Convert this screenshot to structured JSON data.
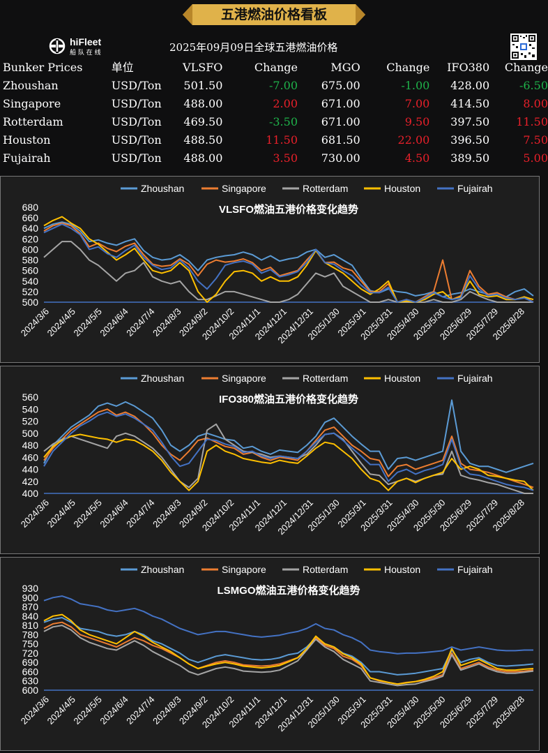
{
  "header": {
    "banner": "五港燃油价格看板",
    "logo_text": "hiFleet",
    "logo_sub": "船 队 在 线",
    "subtitle": "2025年09月09日全球五港燃油价格"
  },
  "price_table": {
    "headers": [
      "Bunker Prices",
      "单位",
      "VLSFO",
      "Change",
      "MGO",
      "Change",
      "IFO380",
      "Change"
    ],
    "rows": [
      {
        "port": "Zhoushan",
        "unit": "USD/Ton",
        "vlsfo": "501.50",
        "vlsfo_chg": "-7.00",
        "mgo": "675.00",
        "mgo_chg": "-1.00",
        "ifo": "428.00",
        "ifo_chg": "-6.50"
      },
      {
        "port": "Singapore",
        "unit": "USD/Ton",
        "vlsfo": "488.00",
        "vlsfo_chg": "2.00",
        "mgo": "671.00",
        "mgo_chg": "7.00",
        "ifo": "414.50",
        "ifo_chg": "8.00"
      },
      {
        "port": "Rotterdam",
        "unit": "USD/Ton",
        "vlsfo": "469.50",
        "vlsfo_chg": "-3.50",
        "mgo": "671.00",
        "mgo_chg": "9.50",
        "ifo": "397.50",
        "ifo_chg": "11.50"
      },
      {
        "port": "Houston",
        "unit": "USD/Ton",
        "vlsfo": "488.50",
        "vlsfo_chg": "11.50",
        "mgo": "681.50",
        "mgo_chg": "22.00",
        "ifo": "396.50",
        "ifo_chg": "7.50"
      },
      {
        "port": "Fujairah",
        "unit": "USD/Ton",
        "vlsfo": "488.00",
        "vlsfo_chg": "3.50",
        "mgo": "730.00",
        "mgo_chg": "4.50",
        "ifo": "389.50",
        "ifo_chg": "5.00"
      }
    ]
  },
  "colors": {
    "zhoushan": "#5b9bd5",
    "singapore": "#ed7d31",
    "rotterdam": "#a5a5a5",
    "houston": "#ffc000",
    "fujairah": "#4472c4",
    "up": "#e8202a",
    "down": "#1fb24a",
    "banner": "#e0b24a"
  },
  "chart_data": [
    {
      "type": "line",
      "title": "VLSFO燃油五港价格变化趋势",
      "legend_position": "top",
      "ylim": [
        500,
        680
      ],
      "yticks": [
        500,
        520,
        540,
        560,
        580,
        600,
        620,
        640,
        660,
        680
      ],
      "x_tick_labels": [
        "2024/3/6",
        "2024/4/5",
        "2024/5/5",
        "2024/6/4",
        "2024/7/4",
        "2024/8/3",
        "2024/9/2",
        "2024/10/2",
        "2024/11/1",
        "2024/12/1",
        "2024/12/31",
        "2025/1/30",
        "2025/3/1",
        "2025/3/31",
        "2025/4/30",
        "2025/5/30",
        "2025/6/29",
        "2025/7/29",
        "2025/8/28"
      ],
      "series": [
        {
          "name": "Zhoushan",
          "values": [
            640,
            648,
            652,
            648,
            635,
            615,
            618,
            612,
            608,
            615,
            620,
            598,
            585,
            580,
            582,
            590,
            578,
            560,
            580,
            585,
            588,
            590,
            595,
            590,
            580,
            588,
            578,
            582,
            585,
            595,
            600,
            585,
            590,
            580,
            570,
            545,
            522,
            518,
            525,
            520,
            518,
            512,
            515,
            520,
            510,
            515,
            518,
            525,
            520,
            515,
            515,
            510,
            520,
            525,
            512
          ]
        },
        {
          "name": "Singapore",
          "values": [
            635,
            645,
            650,
            645,
            630,
            605,
            612,
            602,
            596,
            606,
            612,
            590,
            572,
            568,
            570,
            582,
            572,
            550,
            572,
            580,
            576,
            578,
            582,
            575,
            560,
            566,
            550,
            555,
            560,
            580,
            598,
            575,
            576,
            565,
            560,
            540,
            520,
            520,
            535,
            500,
            505,
            500,
            510,
            520,
            580,
            505,
            512,
            560,
            530,
            515,
            518,
            510,
            505,
            510,
            500
          ]
        },
        {
          "name": "Rotterdam",
          "values": [
            585,
            600,
            615,
            615,
            600,
            580,
            570,
            555,
            540,
            555,
            560,
            575,
            548,
            540,
            535,
            540,
            520,
            505,
            505,
            512,
            520,
            520,
            515,
            510,
            505,
            500,
            500,
            505,
            515,
            535,
            555,
            548,
            555,
            530,
            520,
            510,
            500,
            500,
            505,
            500,
            500,
            500,
            500,
            505,
            500,
            500,
            505,
            520,
            512,
            505,
            500,
            500,
            500,
            500,
            500
          ]
        },
        {
          "name": "Houston",
          "values": [
            645,
            655,
            662,
            650,
            640,
            620,
            610,
            595,
            580,
            590,
            602,
            580,
            560,
            555,
            560,
            575,
            560,
            520,
            500,
            515,
            540,
            558,
            560,
            555,
            540,
            548,
            540,
            540,
            548,
            570,
            598,
            575,
            565,
            555,
            540,
            525,
            515,
            525,
            540,
            500,
            502,
            500,
            505,
            515,
            520,
            505,
            510,
            540,
            515,
            510,
            512,
            505,
            505,
            510,
            505
          ]
        },
        {
          "name": "Fujairah",
          "values": [
            632,
            640,
            648,
            640,
            628,
            600,
            605,
            592,
            585,
            598,
            608,
            585,
            570,
            562,
            565,
            580,
            565,
            540,
            525,
            545,
            570,
            575,
            578,
            572,
            555,
            562,
            548,
            552,
            558,
            575,
            600,
            575,
            572,
            560,
            550,
            532,
            518,
            518,
            528,
            500,
            505,
            500,
            508,
            518,
            510,
            505,
            508,
            550,
            525,
            512,
            515,
            508,
            505,
            508,
            500
          ]
        }
      ]
    },
    {
      "type": "line",
      "title": "IFO380燃油五港价格变化趋势",
      "legend_position": "top",
      "ylim": [
        400,
        560
      ],
      "yticks": [
        400,
        420,
        440,
        460,
        480,
        500,
        520,
        540,
        560
      ],
      "x_tick_labels": [
        "2024/3/6",
        "2024/4/5",
        "2024/5/5",
        "2024/6/4",
        "2024/7/4",
        "2024/8/3",
        "2024/9/2",
        "2024/10/2",
        "2024/11/1",
        "2024/12/1",
        "2024/12/31",
        "2025/1/30",
        "2025/3/1",
        "2025/3/31",
        "2025/4/30",
        "2025/5/30",
        "2025/6/29",
        "2025/7/29",
        "2025/8/28"
      ],
      "series": [
        {
          "name": "Zhoushan",
          "values": [
            450,
            480,
            495,
            510,
            520,
            530,
            545,
            550,
            545,
            552,
            545,
            535,
            525,
            505,
            480,
            470,
            480,
            495,
            500,
            495,
            490,
            488,
            475,
            478,
            470,
            465,
            472,
            470,
            468,
            480,
            495,
            518,
            525,
            510,
            495,
            482,
            470,
            470,
            440,
            458,
            460,
            455,
            460,
            465,
            470,
            555,
            470,
            450,
            445,
            445,
            440,
            435,
            440,
            445,
            450
          ]
        },
        {
          "name": "Singapore",
          "values": [
            455,
            475,
            490,
            505,
            515,
            525,
            535,
            540,
            530,
            535,
            528,
            515,
            500,
            480,
            465,
            455,
            470,
            488,
            492,
            485,
            478,
            475,
            465,
            468,
            460,
            455,
            460,
            458,
            455,
            470,
            488,
            505,
            510,
            495,
            480,
            470,
            458,
            455,
            428,
            445,
            448,
            440,
            445,
            450,
            455,
            495,
            450,
            440,
            438,
            435,
            430,
            425,
            420,
            415,
            410
          ]
        },
        {
          "name": "Rotterdam",
          "values": [
            470,
            482,
            490,
            495,
            490,
            485,
            480,
            475,
            495,
            500,
            495,
            485,
            475,
            460,
            440,
            420,
            410,
            425,
            505,
            515,
            490,
            480,
            470,
            468,
            465,
            460,
            462,
            460,
            458,
            465,
            480,
            498,
            500,
            490,
            470,
            450,
            432,
            430,
            415,
            420,
            425,
            420,
            425,
            430,
            432,
            470,
            430,
            425,
            422,
            418,
            415,
            410,
            405,
            400,
            400
          ]
        },
        {
          "name": "Houston",
          "values": [
            460,
            478,
            488,
            495,
            498,
            495,
            492,
            490,
            485,
            490,
            488,
            480,
            470,
            455,
            435,
            420,
            405,
            420,
            470,
            480,
            470,
            465,
            458,
            455,
            452,
            450,
            455,
            452,
            450,
            462,
            475,
            485,
            482,
            470,
            458,
            440,
            425,
            420,
            405,
            420,
            425,
            418,
            425,
            430,
            435,
            458,
            440,
            445,
            440,
            430,
            428,
            425,
            422,
            420,
            405
          ]
        },
        {
          "name": "Fujairah",
          "values": [
            445,
            470,
            485,
            500,
            512,
            520,
            530,
            535,
            528,
            532,
            525,
            515,
            505,
            485,
            462,
            445,
            450,
            470,
            490,
            488,
            482,
            478,
            468,
            470,
            462,
            458,
            462,
            460,
            458,
            470,
            485,
            498,
            500,
            488,
            475,
            462,
            448,
            448,
            420,
            435,
            440,
            432,
            438,
            442,
            448,
            490,
            445,
            432,
            430,
            425,
            420,
            415,
            412,
            410,
            405
          ]
        }
      ]
    },
    {
      "type": "line",
      "title": "LSMGO燃油五港价格变化趋势",
      "legend_position": "top",
      "ylim": [
        600,
        930
      ],
      "yticks": [
        600,
        630,
        660,
        690,
        720,
        750,
        780,
        810,
        840,
        870,
        900,
        930
      ],
      "x_tick_labels": [
        "2024/3/6",
        "2024/4/5",
        "2024/5/5",
        "2024/6/4",
        "2024/7/4",
        "2024/8/3",
        "2024/9/2",
        "2024/10/2",
        "2024/11/1",
        "2024/12/1",
        "2024/12/31",
        "2025/1/30",
        "2025/3/1",
        "2025/3/31",
        "2025/4/30",
        "2025/5/30",
        "2025/6/29",
        "2025/7/29",
        "2025/8/28"
      ],
      "series": [
        {
          "name": "Zhoushan",
          "values": [
            820,
            830,
            835,
            820,
            800,
            795,
            790,
            780,
            775,
            780,
            790,
            780,
            760,
            750,
            735,
            720,
            700,
            690,
            700,
            710,
            715,
            710,
            705,
            700,
            698,
            700,
            705,
            715,
            720,
            740,
            770,
            750,
            740,
            720,
            710,
            690,
            660,
            660,
            655,
            650,
            652,
            655,
            660,
            665,
            670,
            730,
            690,
            700,
            705,
            690,
            680,
            678,
            680,
            682,
            685
          ]
        },
        {
          "name": "Singapore",
          "values": [
            800,
            815,
            820,
            805,
            780,
            770,
            760,
            750,
            740,
            755,
            770,
            760,
            745,
            735,
            720,
            705,
            685,
            670,
            680,
            690,
            695,
            690,
            682,
            680,
            678,
            680,
            685,
            695,
            705,
            730,
            770,
            745,
            735,
            710,
            700,
            680,
            640,
            630,
            625,
            620,
            625,
            628,
            632,
            640,
            650,
            720,
            670,
            680,
            690,
            675,
            665,
            660,
            660,
            662,
            665
          ]
        },
        {
          "name": "Rotterdam",
          "values": [
            790,
            805,
            810,
            795,
            770,
            755,
            745,
            735,
            730,
            745,
            760,
            745,
            725,
            710,
            695,
            680,
            660,
            650,
            660,
            670,
            675,
            670,
            662,
            660,
            658,
            660,
            665,
            680,
            695,
            730,
            765,
            740,
            725,
            700,
            685,
            670,
            630,
            625,
            620,
            615,
            618,
            620,
            628,
            635,
            645,
            715,
            665,
            675,
            685,
            670,
            660,
            655,
            655,
            658,
            662
          ]
        },
        {
          "name": "Houston",
          "values": [
            825,
            840,
            845,
            825,
            795,
            780,
            770,
            760,
            750,
            770,
            790,
            775,
            755,
            740,
            725,
            705,
            685,
            670,
            678,
            685,
            690,
            685,
            678,
            675,
            672,
            675,
            680,
            692,
            705,
            735,
            775,
            750,
            740,
            718,
            705,
            685,
            640,
            632,
            625,
            620,
            624,
            628,
            635,
            645,
            660,
            735,
            680,
            690,
            700,
            685,
            670,
            665,
            665,
            668,
            670
          ]
        },
        {
          "name": "Fujairah",
          "values": [
            890,
            900,
            905,
            895,
            880,
            875,
            870,
            860,
            855,
            860,
            865,
            855,
            840,
            830,
            815,
            800,
            790,
            780,
            785,
            790,
            790,
            785,
            780,
            775,
            772,
            775,
            778,
            785,
            790,
            800,
            815,
            800,
            795,
            780,
            770,
            755,
            730,
            725,
            722,
            718,
            720,
            720,
            722,
            725,
            728,
            740,
            730,
            735,
            740,
            735,
            730,
            728,
            728,
            730,
            730
          ]
        }
      ]
    }
  ]
}
